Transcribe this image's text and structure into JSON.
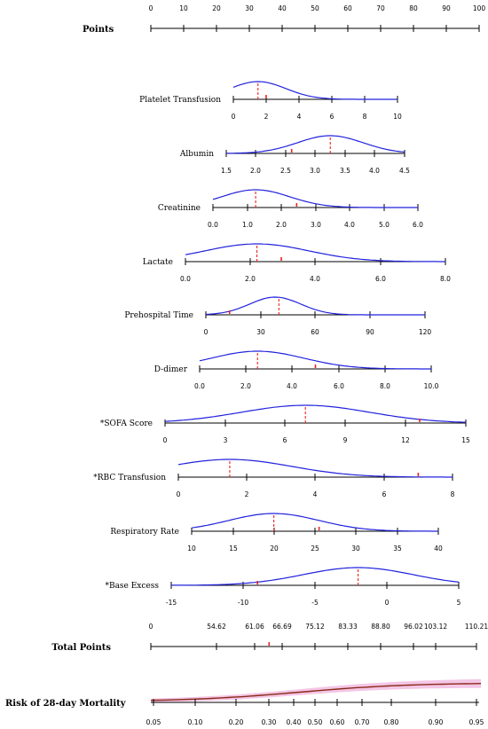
{
  "chart_data": {
    "type": "nomogram",
    "points": {
      "label": "Points",
      "ticks": [
        "0",
        "10",
        "20",
        "30",
        "40",
        "50",
        "60",
        "70",
        "80",
        "90",
        "100"
      ]
    },
    "variables": [
      {
        "name": "Platelet Transfusion",
        "ticks": [
          "0",
          "2",
          "4",
          "6",
          "8",
          "10"
        ],
        "range": [
          0,
          10
        ],
        "dist": {
          "mean": 1.5,
          "sd": 1.7,
          "amp": 1.0
        },
        "marker": 1.5,
        "observed": 2.0
      },
      {
        "name": "Albumin",
        "ticks": [
          "1.5",
          "2.0",
          "2.5",
          "3.0",
          "3.5",
          "4.0",
          "4.5"
        ],
        "range": [
          1.5,
          4.5
        ],
        "dist": {
          "mean": 3.25,
          "sd": 0.55,
          "amp": 1.0
        },
        "marker": 3.25,
        "observed": 2.6
      },
      {
        "name": "Creatinine",
        "ticks": [
          "0.0",
          "1.0",
          "2.0",
          "3.0",
          "4.0",
          "5.0",
          "6.0"
        ],
        "range": [
          0,
          6
        ],
        "dist": {
          "mean": 1.25,
          "sd": 1.0,
          "amp": 1.0
        },
        "marker": 1.25,
        "observed": 2.45
      },
      {
        "name": "Lactate",
        "ticks": [
          "0.0",
          "2.0",
          "4.0",
          "6.0",
          "8.0"
        ],
        "range": [
          0,
          8
        ],
        "dist": {
          "mean": 2.2,
          "sd": 1.6,
          "amp": 1.0
        },
        "marker": 2.2,
        "observed": 2.95
      },
      {
        "name": "Prehospital Time",
        "ticks": [
          "0",
          "30",
          "60",
          "90",
          "120"
        ],
        "range": [
          0,
          120
        ],
        "dist": {
          "mean": 38,
          "sd": 14,
          "amp": 1.0
        },
        "marker": 40,
        "observed": 13
      },
      {
        "name": "D-dimer",
        "ticks": [
          "0.0",
          "2.0",
          "4.0",
          "6.0",
          "8.0",
          "10.0"
        ],
        "range": [
          0,
          10
        ],
        "dist": {
          "mean": 2.5,
          "sd": 2.0,
          "amp": 1.0
        },
        "marker": 2.5,
        "observed": 5.0
      },
      {
        "name": "*SOFA Score",
        "ticks": [
          "0",
          "3",
          "6",
          "9",
          "12",
          "15"
        ],
        "range": [
          0,
          15
        ],
        "dist": {
          "mean": 7.0,
          "sd": 3.2,
          "amp": 1.0
        },
        "marker": 7.0,
        "observed": 12.7
      },
      {
        "name": "*RBC Transfusion",
        "ticks": [
          "0",
          "2",
          "4",
          "6",
          "8"
        ],
        "range": [
          0,
          8
        ],
        "dist": {
          "mean": 1.5,
          "sd": 1.8,
          "amp": 1.0
        },
        "marker": 1.5,
        "observed": 7.0
      },
      {
        "name": "Respiratory Rate",
        "ticks": [
          "10",
          "15",
          "20",
          "25",
          "30",
          "35",
          "40"
        ],
        "range": [
          10,
          40
        ],
        "dist": {
          "mean": 20,
          "sd": 5.5,
          "amp": 1.0
        },
        "marker": 20,
        "observed": 25.5
      },
      {
        "name": "*Base Excess",
        "ticks": [
          "-15",
          "-10",
          "-5",
          "0",
          "5"
        ],
        "range": [
          -15,
          5
        ],
        "dist": {
          "mean": -2,
          "sd": 3.8,
          "amp": 1.0
        },
        "marker": -2,
        "observed": -9
      }
    ],
    "total_points": {
      "label": "Total Points",
      "ticks": [
        "0",
        "54.62",
        "61.06",
        "66.69",
        "75.12",
        "83.33",
        "88.80",
        "96.02",
        "103.12",
        "110.21"
      ],
      "observed": 63.5
    },
    "risk": {
      "label": "Risk of 28-day Mortality",
      "ticks": [
        "0.05",
        "0.10",
        "0.20",
        "0.30",
        "0.40",
        "0.50",
        "0.60",
        "0.70",
        "0.80",
        "0.90",
        "0.95"
      ]
    },
    "colors": {
      "axis": "#000000",
      "density": "#2222dd",
      "marker": "#ee2222",
      "risk_curve": "#8b2a1a",
      "risk_band": "#f4c6e6"
    }
  }
}
